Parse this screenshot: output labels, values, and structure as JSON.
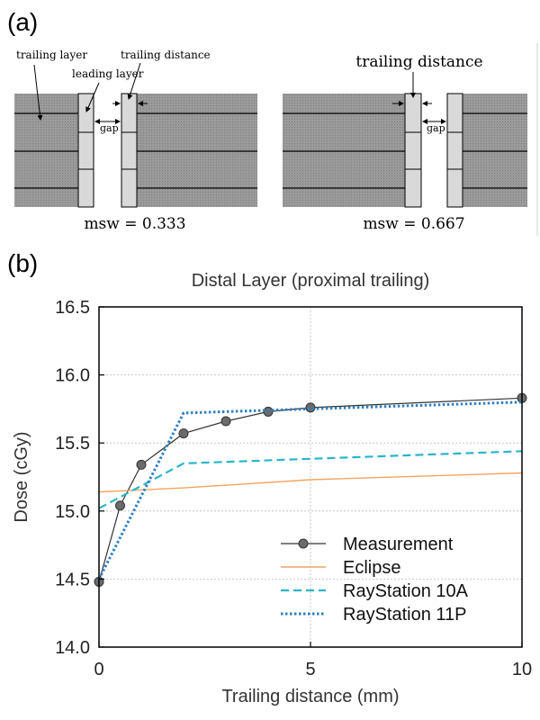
{
  "panel_a": {
    "label": "(a)",
    "left": {
      "trailing_layer": "trailing layer",
      "leading_layer": "leading layer",
      "trailing_distance": "trailing distance",
      "gap": "gap",
      "msw": "msw = 0.333"
    },
    "right": {
      "trailing_distance": "trailing distance",
      "gap": "gap",
      "msw": "msw = 0.667"
    }
  },
  "panel_b": {
    "label": "(b)"
  },
  "chart_data": {
    "type": "line",
    "title": "Distal Layer (proximal trailing)",
    "xlabel": "Trailing distance (mm)",
    "ylabel": "Dose (cGy)",
    "xlim": [
      0,
      10
    ],
    "ylim": [
      14.0,
      16.5
    ],
    "xticks": [
      0,
      5,
      10
    ],
    "yticks": [
      "14.0",
      "14.5",
      "15.0",
      "15.5",
      "16.0",
      "16.5"
    ],
    "grid": true,
    "legend_position": "bottom-right",
    "series": [
      {
        "name": "Measurement",
        "style": "solid-markers",
        "color": "#333333",
        "x": [
          0,
          0.5,
          1,
          2,
          3,
          4,
          5,
          10
        ],
        "y": [
          14.48,
          15.04,
          15.34,
          15.57,
          15.66,
          15.73,
          15.76,
          15.83
        ]
      },
      {
        "name": "Eclipse",
        "style": "solid",
        "color": "#f4a460",
        "x": [
          0,
          2,
          3,
          5,
          10
        ],
        "y": [
          15.14,
          15.17,
          15.19,
          15.23,
          15.28
        ]
      },
      {
        "name": "RayStation 10A",
        "style": "dashed",
        "color": "#2ab5c9",
        "x": [
          0,
          2,
          10
        ],
        "y": [
          15.02,
          15.35,
          15.44
        ]
      },
      {
        "name": "RayStation 11P",
        "style": "dotted",
        "color": "#2f7fbf",
        "x": [
          0,
          2,
          10
        ],
        "y": [
          14.5,
          15.72,
          15.8
        ]
      }
    ]
  }
}
